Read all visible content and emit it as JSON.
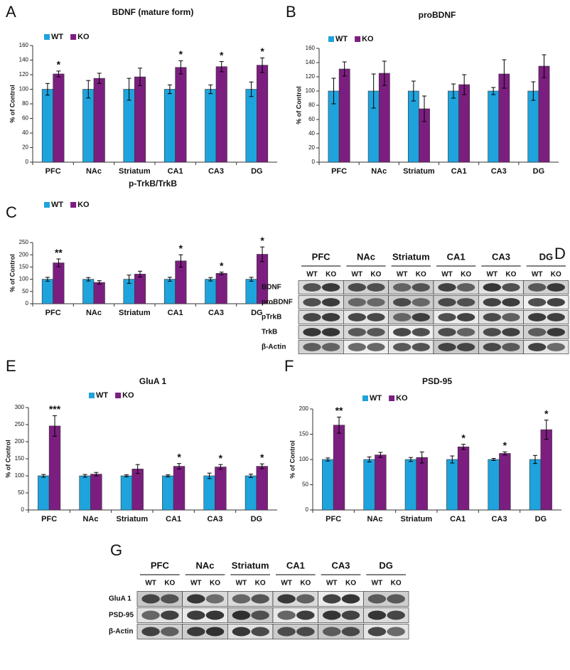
{
  "chart_data": [
    {
      "type": "bar",
      "panel": "A",
      "title": "BDNF (mature form)",
      "y_label": "% of Control",
      "categories": [
        "PFC",
        "NAc",
        "Striatum",
        "CA1",
        "CA3",
        "DG"
      ],
      "series": [
        {
          "name": "WT",
          "color": "#1fa3dc",
          "values": [
            100,
            100,
            100,
            100,
            100,
            100
          ],
          "errors": [
            8,
            12,
            15,
            6,
            6,
            10
          ]
        },
        {
          "name": "KO",
          "color": "#7c1e80",
          "values": [
            121,
            115,
            117,
            130,
            131,
            133
          ],
          "errors": [
            4,
            7,
            12,
            9,
            7,
            10
          ]
        }
      ],
      "annotations": [
        "*",
        null,
        null,
        "*",
        "*",
        "*"
      ],
      "ylim": [
        0,
        160
      ],
      "yticks": [
        0,
        20,
        40,
        60,
        80,
        100,
        120,
        140,
        160
      ],
      "legend": "top-left"
    },
    {
      "type": "bar",
      "panel": "B",
      "title": "proBDNF",
      "y_label": "% of Control",
      "categories": [
        "PFC",
        "NAc",
        "Striatum",
        "CA1",
        "CA3",
        "DG"
      ],
      "series": [
        {
          "name": "WT",
          "color": "#1fa3dc",
          "values": [
            100,
            100,
            100,
            100,
            100,
            100
          ],
          "errors": [
            18,
            24,
            14,
            10,
            5,
            13
          ]
        },
        {
          "name": "KO",
          "color": "#7c1e80",
          "values": [
            131,
            125,
            75,
            109,
            124,
            135
          ],
          "errors": [
            10,
            17,
            18,
            14,
            20,
            16
          ]
        }
      ],
      "ylim": [
        0,
        160
      ],
      "yticks": [
        0,
        20,
        40,
        60,
        80,
        100,
        120,
        140,
        160
      ],
      "legend": "top-left"
    },
    {
      "type": "bar",
      "panel": "C",
      "title": "p-TrkB/TrkB",
      "y_label": "% of Control",
      "categories": [
        "PFC",
        "NAc",
        "Striatum",
        "CA1",
        "CA3",
        "DG"
      ],
      "series": [
        {
          "name": "WT",
          "color": "#1fa3dc",
          "values": [
            100,
            100,
            100,
            100,
            100,
            100
          ],
          "errors": [
            8,
            7,
            17,
            8,
            7,
            8
          ]
        },
        {
          "name": "KO",
          "color": "#7c1e80",
          "values": [
            167,
            87,
            121,
            175,
            124,
            202
          ],
          "errors": [
            16,
            7,
            12,
            25,
            5,
            30
          ]
        }
      ],
      "annotations": [
        "**",
        null,
        null,
        "*",
        "*",
        "*"
      ],
      "ylim": [
        0,
        250
      ],
      "yticks": [
        0,
        50,
        100,
        150,
        200,
        250
      ],
      "legend": "top-left"
    },
    {
      "type": "bar",
      "panel": "E",
      "title": "GluA 1",
      "y_label": "% of Control",
      "categories": [
        "PFC",
        "NAc",
        "Striatum",
        "CA1",
        "CA3",
        "DG"
      ],
      "series": [
        {
          "name": "WT",
          "color": "#1fa3dc",
          "values": [
            100,
            100,
            100,
            100,
            100,
            100
          ],
          "errors": [
            4,
            4,
            3,
            3,
            8,
            5
          ]
        },
        {
          "name": "KO",
          "color": "#7c1e80",
          "values": [
            246,
            105,
            120,
            128,
            126,
            128
          ],
          "errors": [
            30,
            5,
            13,
            8,
            7,
            7
          ]
        }
      ],
      "annotations": [
        "***",
        null,
        null,
        "*",
        "*",
        "*"
      ],
      "ylim": [
        0,
        300
      ],
      "yticks": [
        0,
        50,
        100,
        150,
        200,
        250,
        300
      ],
      "legend": "top-center"
    },
    {
      "type": "bar",
      "panel": "F",
      "title": "PSD-95",
      "y_label": "% of Control",
      "categories": [
        "PFC",
        "NAc",
        "Striatum",
        "CA1",
        "CA3",
        "DG"
      ],
      "series": [
        {
          "name": "WT",
          "color": "#1fa3dc",
          "values": [
            100,
            100,
            100,
            100,
            100,
            100
          ],
          "errors": [
            3,
            5,
            4,
            7,
            2,
            8
          ]
        },
        {
          "name": "KO",
          "color": "#7c1e80",
          "values": [
            168,
            109,
            104,
            125,
            112,
            159
          ],
          "errors": [
            16,
            5,
            11,
            5,
            3,
            19
          ]
        }
      ],
      "annotations": [
        "**",
        null,
        null,
        "*",
        "*",
        "*"
      ],
      "ylim": [
        0,
        200
      ],
      "yticks": [
        0,
        50,
        100,
        150,
        200
      ],
      "legend": "top-center"
    }
  ],
  "blots": [
    {
      "panel": "D",
      "groups": [
        "PFC",
        "NAc",
        "Striatum",
        "CA1",
        "CA3",
        "DG"
      ],
      "lanes": [
        "WT",
        "KO"
      ],
      "rows": [
        "BDNF",
        "proBDNF",
        "pTrkB",
        "TrkB",
        "β-Actin"
      ]
    },
    {
      "panel": "G",
      "groups": [
        "PFC",
        "NAc",
        "Striatum",
        "CA1",
        "CA3",
        "DG"
      ],
      "lanes": [
        "WT",
        "KO"
      ],
      "rows": [
        "GluA 1",
        "PSD-95",
        "β-Actin"
      ]
    }
  ]
}
